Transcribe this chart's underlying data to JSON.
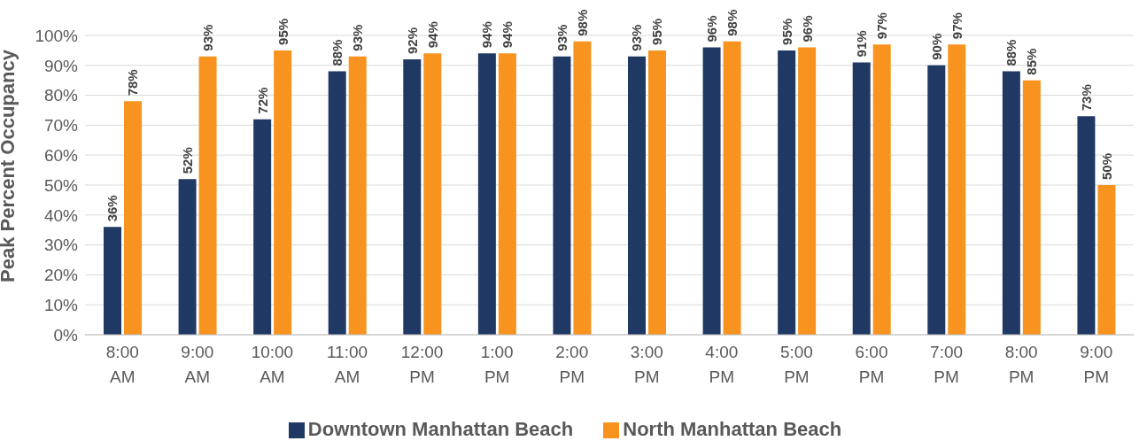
{
  "chart_data": {
    "type": "bar",
    "ylabel": "Peak Percent Occupancy",
    "categories": [
      "8:00 AM",
      "9:00 AM",
      "10:00 AM",
      "11:00 AM",
      "12:00 PM",
      "1:00 PM",
      "2:00 PM",
      "3:00 PM",
      "4:00 PM",
      "5:00 PM",
      "6:00 PM",
      "7:00 PM",
      "8:00 PM",
      "9:00 PM"
    ],
    "series": [
      {
        "name": "Downtown Manhattan Beach",
        "color": "#1f3864",
        "values": [
          36,
          52,
          72,
          88,
          92,
          94,
          93,
          93,
          96,
          95,
          91,
          90,
          88,
          73
        ],
        "value_labels": [
          "36%",
          "52%",
          "72%",
          "88%",
          "92%",
          "94%",
          "93%",
          "93%",
          "96%",
          "95%",
          "91%",
          "90%",
          "88%",
          "73%"
        ]
      },
      {
        "name": "North Manhattan Beach",
        "color": "#f7931e",
        "values": [
          78,
          93,
          95,
          93,
          94,
          94,
          98,
          95,
          98,
          96,
          97,
          97,
          85,
          50
        ],
        "value_labels": [
          "78%",
          "93%",
          "95%",
          "93%",
          "94%",
          "94%",
          "98%",
          "95%",
          "98%",
          "96%",
          "97%",
          "97%",
          "85%",
          "50%"
        ]
      }
    ],
    "ylim": [
      0,
      100
    ],
    "yticks": [
      {
        "value": 0,
        "label": "0%"
      },
      {
        "value": 10,
        "label": "10%"
      },
      {
        "value": 20,
        "label": "20%"
      },
      {
        "value": 30,
        "label": "30%"
      },
      {
        "value": 40,
        "label": "40%"
      },
      {
        "value": 50,
        "label": "50%"
      },
      {
        "value": 60,
        "label": "60%"
      },
      {
        "value": 70,
        "label": "70%"
      },
      {
        "value": 80,
        "label": "80%"
      },
      {
        "value": 90,
        "label": "90%"
      },
      {
        "value": 100,
        "label": "100%"
      }
    ],
    "grid": "y",
    "legend": "bottom"
  }
}
